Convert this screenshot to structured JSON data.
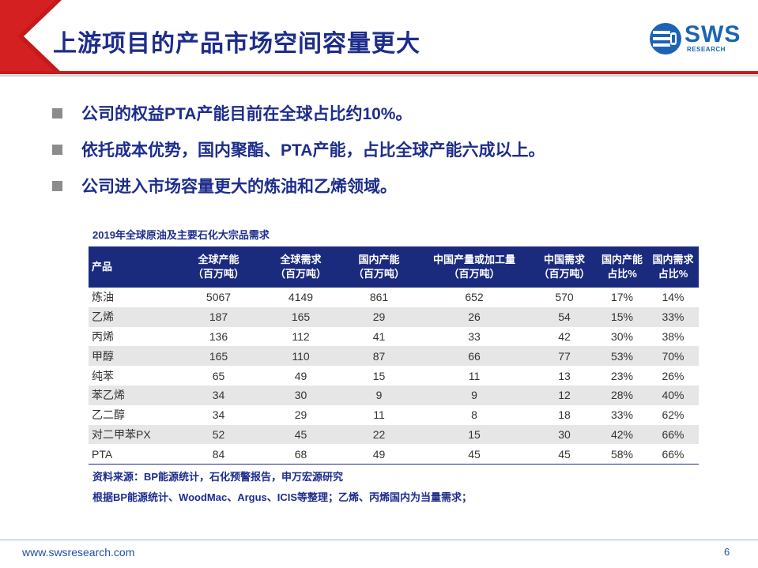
{
  "header": {
    "title": "上游项目的产品市场空间容量更大",
    "logo": {
      "main": "SWS",
      "sub": "RESEARCH"
    }
  },
  "bullets": [
    "公司的权益PTA产能目前在全球占比约10%。",
    "依托成本优势，国内聚酯、PTA产能，占比全球产能六成以上。",
    "公司进入市场容量更大的炼油和乙烯领域。"
  ],
  "table": {
    "caption": "2019年全球原油及主要石化大宗品需求",
    "headers": [
      {
        "l1": "产品",
        "l2": ""
      },
      {
        "l1": "全球产能",
        "l2": "（百万吨）"
      },
      {
        "l1": "全球需求",
        "l2": "（百万吨）"
      },
      {
        "l1": "国内产能",
        "l2": "（百万吨）"
      },
      {
        "l1": "中国产量或加工量",
        "l2": "（百万吨）"
      },
      {
        "l1": "中国需求",
        "l2": "（百万吨）"
      },
      {
        "l1": "国内产能",
        "l2": "占比%"
      },
      {
        "l1": "国内需求",
        "l2": "占比%"
      }
    ],
    "rows": [
      [
        "炼油",
        "5067",
        "4149",
        "861",
        "652",
        "570",
        "17%",
        "14%"
      ],
      [
        "乙烯",
        "187",
        "165",
        "29",
        "26",
        "54",
        "15%",
        "33%"
      ],
      [
        "丙烯",
        "136",
        "112",
        "41",
        "33",
        "42",
        "30%",
        "38%"
      ],
      [
        "甲醇",
        "165",
        "110",
        "87",
        "66",
        "77",
        "53%",
        "70%"
      ],
      [
        "纯苯",
        "65",
        "49",
        "15",
        "11",
        "13",
        "23%",
        "26%"
      ],
      [
        "苯乙烯",
        "34",
        "30",
        "9",
        "9",
        "12",
        "28%",
        "40%"
      ],
      [
        "乙二醇",
        "34",
        "29",
        "11",
        "8",
        "18",
        "33%",
        "62%"
      ],
      [
        "对二甲苯PX",
        "52",
        "45",
        "22",
        "15",
        "30",
        "42%",
        "66%"
      ],
      [
        "PTA",
        "84",
        "68",
        "49",
        "45",
        "45",
        "58%",
        "66%"
      ]
    ]
  },
  "notes": [
    "资料来源：BP能源统计，石化预警报告，申万宏源研究",
    "根据BP能源统计、WoodMac、Argus、ICIS等整理；乙烯、丙烯国内为当量需求；"
  ],
  "footer": {
    "url": "www.swsresearch.com",
    "page": "6"
  },
  "colors": {
    "title": "#1d2d8c",
    "accent_red": "#c41a1a",
    "table_header": "#1a2b7e",
    "stripe": "#e6e6e6",
    "logo": "#1b64b4"
  }
}
